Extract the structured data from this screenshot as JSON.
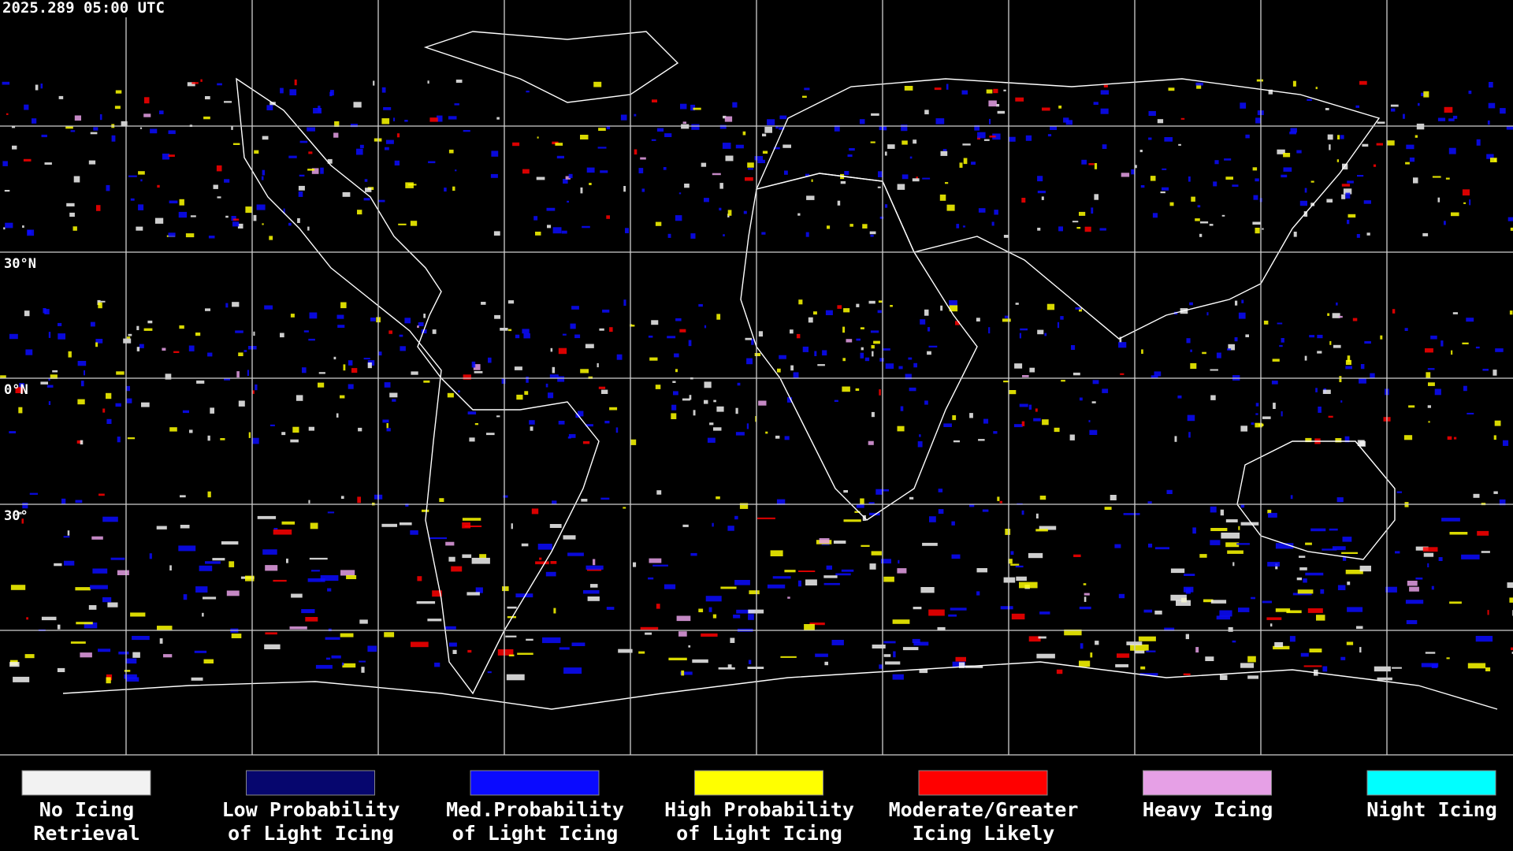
{
  "header": {
    "timestamp": "2025.289 05:00 UTC"
  },
  "map": {
    "latitude_labels": [
      "30°N",
      "0°N",
      "30°"
    ]
  },
  "legend": {
    "items": [
      {
        "lines": [
          "No Icing",
          "Retrieval"
        ],
        "color": "#f2f2f2"
      },
      {
        "lines": [
          "Low Probability",
          "of Light Icing"
        ],
        "color": "#06066e"
      },
      {
        "lines": [
          "Med.Probability",
          "of Light Icing"
        ],
        "color": "#0a0aff"
      },
      {
        "lines": [
          "High Probability",
          "of Light Icing"
        ],
        "color": "#ffff00"
      },
      {
        "lines": [
          "Moderate/Greater",
          "Icing Likely"
        ],
        "color": "#ff0000"
      },
      {
        "lines": [
          "Heavy Icing"
        ],
        "color": "#e6a0e6"
      },
      {
        "lines": [
          "Night Icing"
        ],
        "color": "#00ffff"
      }
    ]
  }
}
